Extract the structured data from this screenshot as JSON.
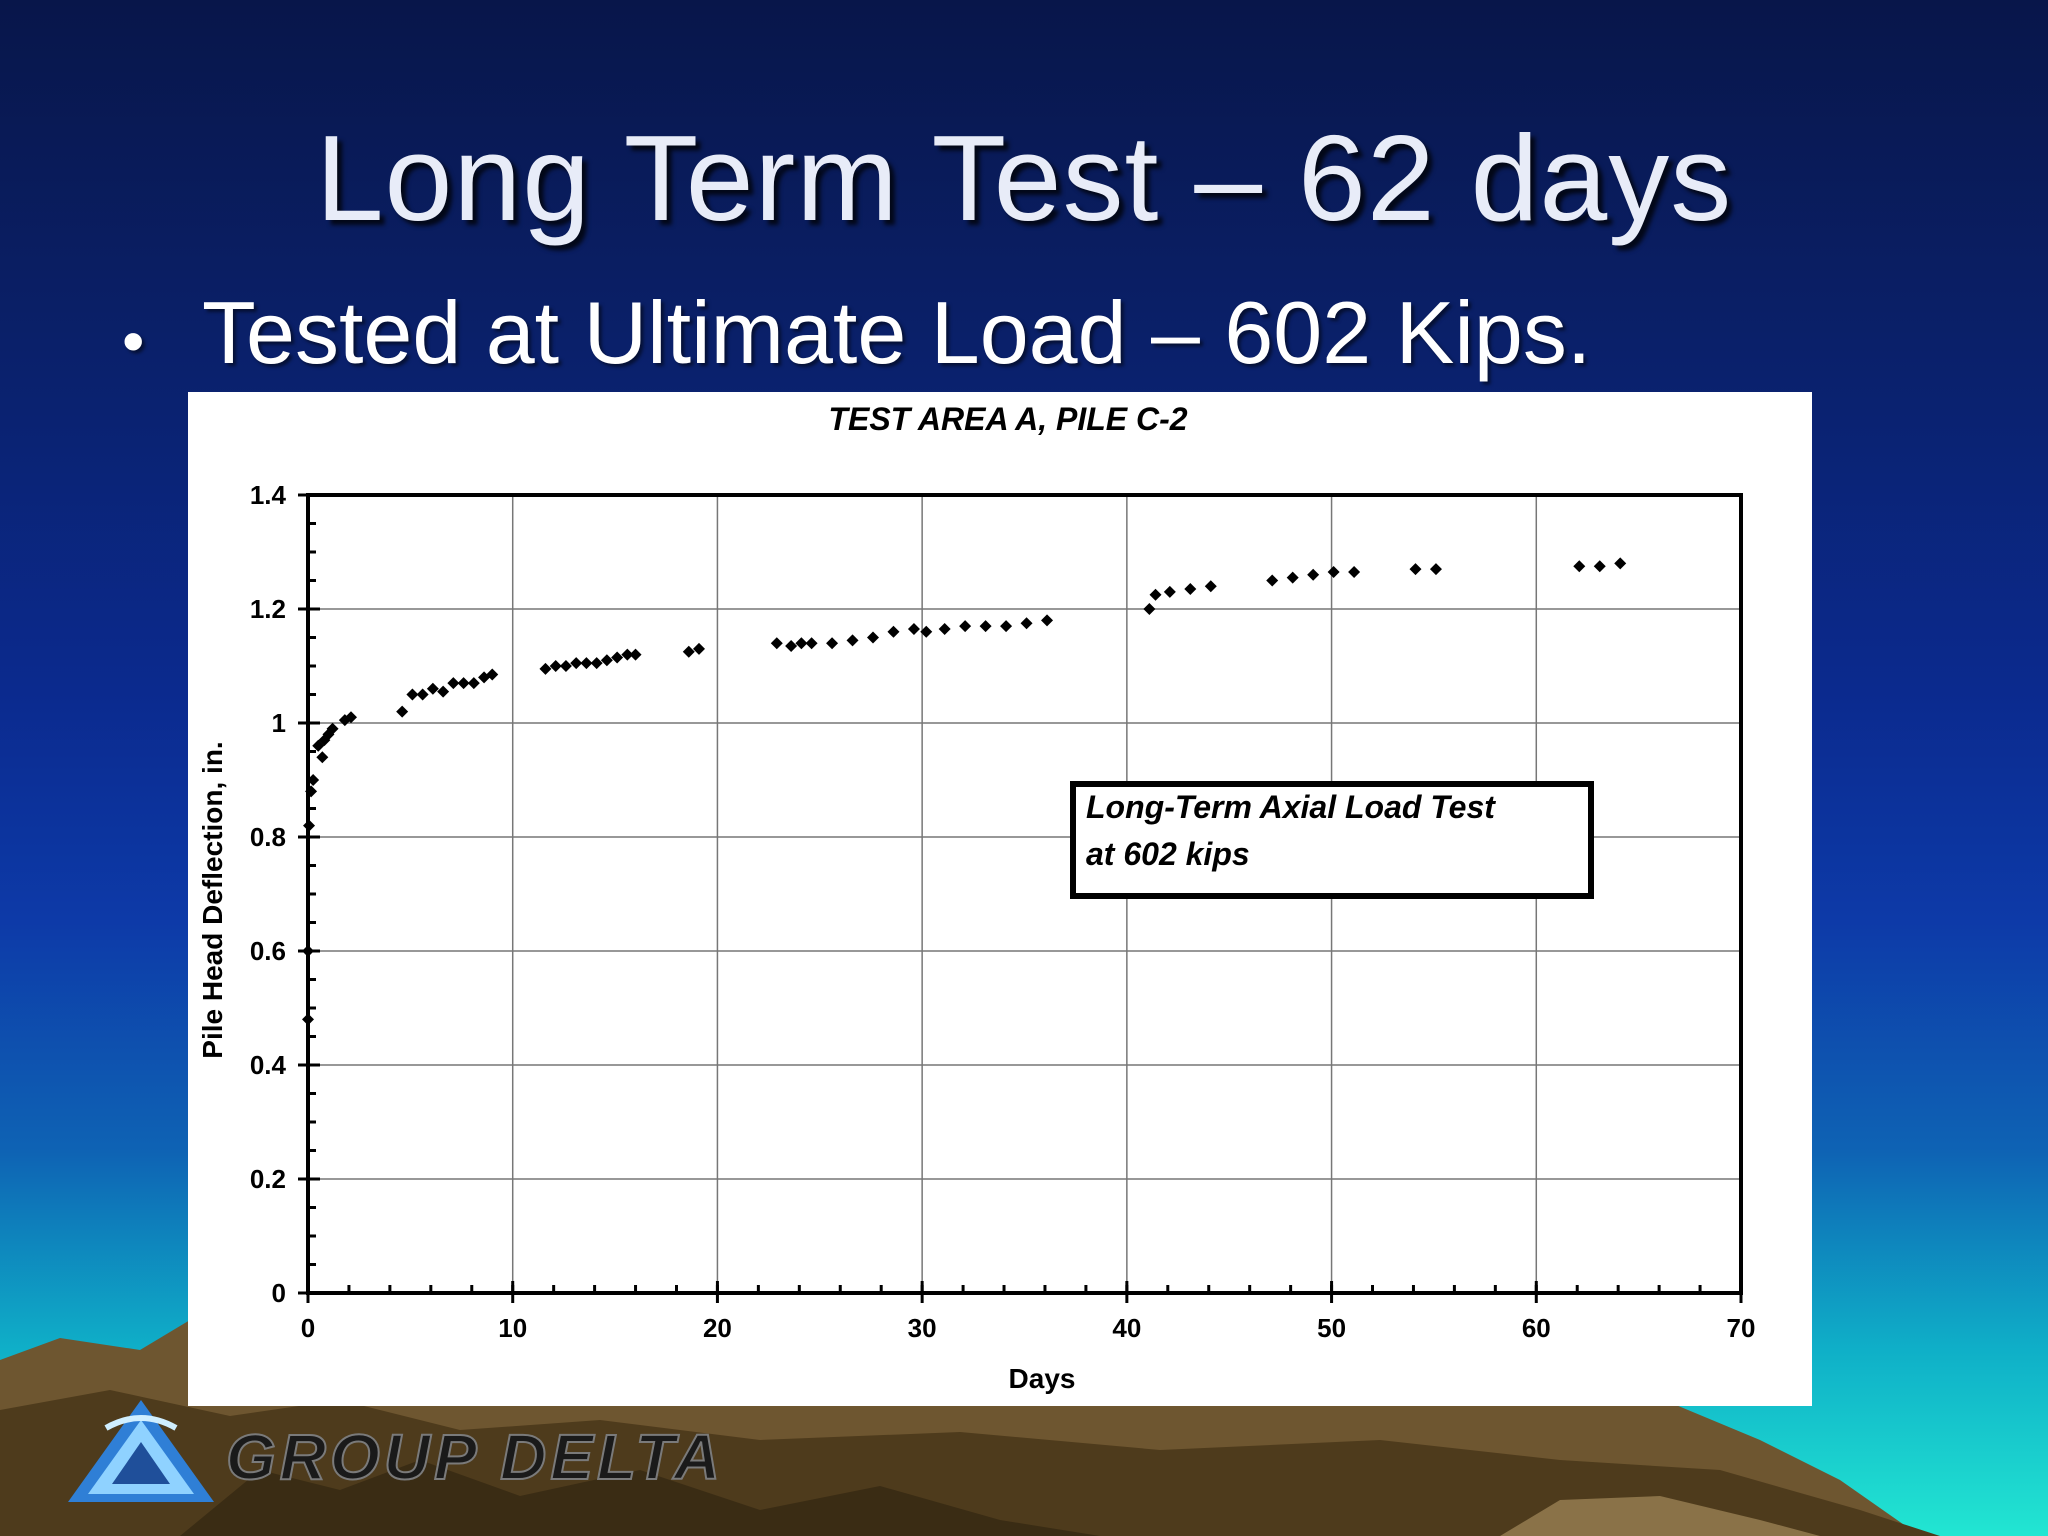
{
  "slide": {
    "title": "Long Term Test – 62 days",
    "bullet_marker": "•",
    "bullet_text": "Tested at Ultimate Load – 602 Kips."
  },
  "brand": {
    "name": "GROUP DELTA"
  },
  "chart_data": {
    "type": "scatter",
    "title": "TEST AREA A, PILE C-2",
    "xlabel": "Days",
    "ylabel": "Pile Head Deflection, in.",
    "xlim": [
      0,
      70
    ],
    "ylim": [
      0,
      1.4
    ],
    "x_ticks": [
      0,
      10,
      20,
      30,
      40,
      50,
      60,
      70
    ],
    "y_ticks": [
      0,
      0.2,
      0.4,
      0.6,
      0.8,
      1,
      1.2,
      1.4
    ],
    "y_tick_labels": [
      "0",
      "0.2",
      "0.4",
      "0.6",
      "0.8",
      "1",
      "1.2",
      "1.4"
    ],
    "grid": true,
    "annotation": [
      "Long-Term Axial Load Test",
      "at 602 kips"
    ],
    "series": [
      {
        "marker": "diamond",
        "color": "#000000",
        "points": [
          [
            0,
            0.48
          ],
          [
            0,
            0.6
          ],
          [
            0.05,
            0.82
          ],
          [
            0.15,
            0.88
          ],
          [
            0.25,
            0.9
          ],
          [
            0.5,
            0.96
          ],
          [
            0.7,
            0.94
          ],
          [
            0.8,
            0.97
          ],
          [
            1.0,
            0.98
          ],
          [
            1.2,
            0.99
          ],
          [
            1.8,
            1.005
          ],
          [
            2.1,
            1.01
          ],
          [
            4.6,
            1.02
          ],
          [
            5.1,
            1.05
          ],
          [
            5.6,
            1.05
          ],
          [
            6.1,
            1.06
          ],
          [
            6.6,
            1.055
          ],
          [
            7.1,
            1.07
          ],
          [
            7.6,
            1.07
          ],
          [
            8.1,
            1.07
          ],
          [
            8.6,
            1.08
          ],
          [
            9.0,
            1.085
          ],
          [
            11.6,
            1.095
          ],
          [
            12.1,
            1.1
          ],
          [
            12.6,
            1.1
          ],
          [
            13.1,
            1.105
          ],
          [
            13.6,
            1.105
          ],
          [
            14.1,
            1.105
          ],
          [
            14.6,
            1.11
          ],
          [
            15.1,
            1.115
          ],
          [
            15.6,
            1.12
          ],
          [
            16.0,
            1.12
          ],
          [
            18.6,
            1.125
          ],
          [
            19.1,
            1.13
          ],
          [
            22.9,
            1.14
          ],
          [
            23.6,
            1.135
          ],
          [
            24.1,
            1.14
          ],
          [
            24.6,
            1.14
          ],
          [
            25.6,
            1.14
          ],
          [
            26.6,
            1.145
          ],
          [
            27.6,
            1.15
          ],
          [
            28.6,
            1.16
          ],
          [
            29.6,
            1.165
          ],
          [
            30.2,
            1.16
          ],
          [
            31.1,
            1.165
          ],
          [
            32.1,
            1.17
          ],
          [
            33.1,
            1.17
          ],
          [
            34.1,
            1.17
          ],
          [
            35.1,
            1.175
          ],
          [
            36.1,
            1.18
          ],
          [
            41.1,
            1.2
          ],
          [
            41.4,
            1.225
          ],
          [
            42.1,
            1.23
          ],
          [
            43.1,
            1.235
          ],
          [
            44.1,
            1.24
          ],
          [
            47.1,
            1.25
          ],
          [
            48.1,
            1.255
          ],
          [
            49.1,
            1.26
          ],
          [
            50.1,
            1.265
          ],
          [
            51.1,
            1.265
          ],
          [
            54.1,
            1.27
          ],
          [
            55.1,
            1.27
          ],
          [
            62.1,
            1.275
          ],
          [
            63.1,
            1.275
          ],
          [
            64.1,
            1.28
          ]
        ]
      }
    ]
  }
}
